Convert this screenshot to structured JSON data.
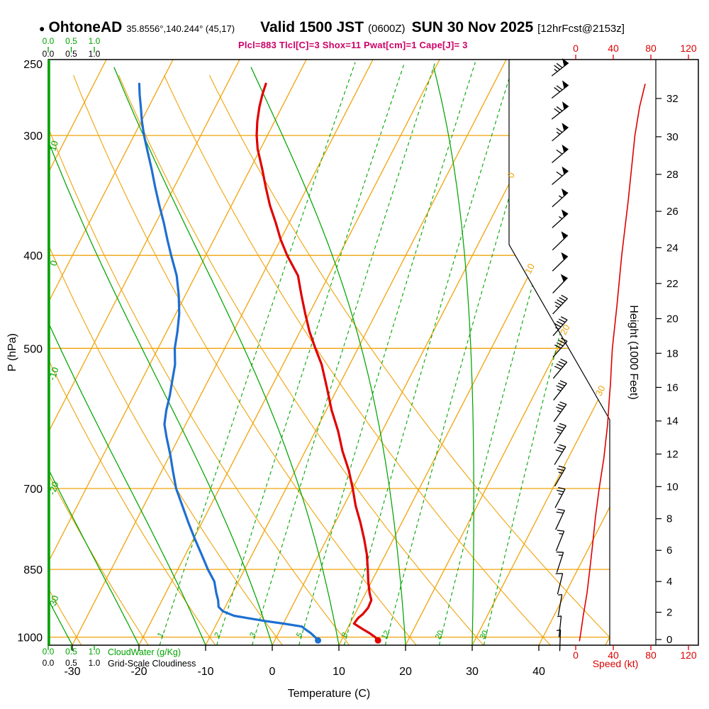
{
  "header": {
    "bullet": "●",
    "station": "OhtoneAD",
    "coords": "35.8556°,140.244° (45,17)",
    "valid": "Valid 1500 JST",
    "utc": "(0600Z)",
    "date": "SUN 30 Nov 2025",
    "fcst": "[12hrFcst@2153z]"
  },
  "params_line": "Plcl=883 Tlcl[C]=3 Shox=11 Pwat[cm]=1 Cape[J]= 3",
  "colors": {
    "grid_orange": "#f0a30a",
    "line_green": "#00a400",
    "dewpoint_blue": "#1e6fd2",
    "temperature_red": "#e00000",
    "wind_red": "#dd0000",
    "param_magenta": "#cc0066",
    "barb_black": "#000000"
  },
  "chart_data": {
    "type": "skewt_log_p_sounding",
    "pressure_axis": {
      "label": "P (hPa)",
      "ticks": [
        250,
        300,
        400,
        500,
        700,
        850,
        1000
      ],
      "range": [
        250,
        1020
      ]
    },
    "temperature_axis": {
      "label": "Temperature (C)",
      "ticks": [
        -30,
        -20,
        -10,
        0,
        10,
        20,
        30,
        40
      ]
    },
    "height_axis": {
      "label": "Height (1000 Feet)",
      "ticks": [
        0,
        2,
        4,
        6,
        8,
        10,
        12,
        14,
        16,
        18,
        20,
        22,
        24,
        26,
        28,
        30,
        32
      ]
    },
    "speed_axis": {
      "label": "Speed (kt)",
      "ticks": [
        0,
        40,
        80,
        120
      ]
    },
    "cloud_axes": {
      "ticks": [
        "0.0",
        "0.5",
        "1.0"
      ],
      "cloudwater_label": "CloudWater (g/Kg)",
      "cloudiness_label": "Grid-Scale Cloudiness"
    },
    "isotherm_labels": [
      0,
      10,
      20,
      30
    ],
    "adiabat_labels": [
      10,
      0,
      -10,
      -20,
      -30
    ],
    "mixing_ratio_labels": [
      1,
      2,
      3,
      5,
      8,
      12,
      20,
      30
    ],
    "temperature_profile": [
      [
        1008,
        15.5
      ],
      [
        1000,
        14.8
      ],
      [
        990,
        13.6
      ],
      [
        980,
        12.2
      ],
      [
        968,
        10.6
      ],
      [
        955,
        10.8
      ],
      [
        946,
        11.2
      ],
      [
        932,
        11.5
      ],
      [
        915,
        11.4
      ],
      [
        900,
        10.6
      ],
      [
        875,
        9.5
      ],
      [
        850,
        8.5
      ],
      [
        820,
        7.2
      ],
      [
        790,
        5.6
      ],
      [
        760,
        3.8
      ],
      [
        730,
        1.8
      ],
      [
        700,
        0
      ],
      [
        670,
        -2
      ],
      [
        640,
        -4.4
      ],
      [
        610,
        -6.6
      ],
      [
        580,
        -9.2
      ],
      [
        550,
        -11.6
      ],
      [
        520,
        -14.2
      ],
      [
        500,
        -16.4
      ],
      [
        480,
        -18.6
      ],
      [
        460,
        -20.6
      ],
      [
        440,
        -22.6
      ],
      [
        420,
        -24.6
      ],
      [
        400,
        -27.8
      ],
      [
        385,
        -30
      ],
      [
        370,
        -32
      ],
      [
        355,
        -34.2
      ],
      [
        340,
        -36.2
      ],
      [
        325,
        -38.2
      ],
      [
        310,
        -40.4
      ],
      [
        300,
        -41.6
      ],
      [
        290,
        -42.6
      ],
      [
        280,
        -43.4
      ],
      [
        272,
        -43.9
      ],
      [
        265,
        -44.2
      ]
    ],
    "dewpoint_profile": [
      [
        1008,
        6.5
      ],
      [
        1000,
        5.8
      ],
      [
        990,
        4.8
      ],
      [
        982,
        3.8
      ],
      [
        975,
        3
      ],
      [
        968,
        0
      ],
      [
        962,
        -3
      ],
      [
        956,
        -5.5
      ],
      [
        950,
        -8
      ],
      [
        940,
        -10
      ],
      [
        930,
        -11
      ],
      [
        915,
        -11.6
      ],
      [
        900,
        -12.4
      ],
      [
        875,
        -13.6
      ],
      [
        850,
        -15.5
      ],
      [
        820,
        -17.6
      ],
      [
        790,
        -19.8
      ],
      [
        760,
        -22
      ],
      [
        730,
        -24.2
      ],
      [
        700,
        -26.5
      ],
      [
        670,
        -28.4
      ],
      [
        645,
        -30
      ],
      [
        620,
        -31.8
      ],
      [
        600,
        -33.2
      ],
      [
        580,
        -34
      ],
      [
        560,
        -34.6
      ],
      [
        540,
        -35.4
      ],
      [
        520,
        -36.2
      ],
      [
        500,
        -37.5
      ],
      [
        480,
        -38.4
      ],
      [
        460,
        -39.5
      ],
      [
        440,
        -41
      ],
      [
        420,
        -42.8
      ],
      [
        400,
        -45.2
      ],
      [
        385,
        -47
      ],
      [
        370,
        -48.8
      ],
      [
        355,
        -50.8
      ],
      [
        340,
        -52.8
      ],
      [
        325,
        -54.8
      ],
      [
        310,
        -57
      ],
      [
        300,
        -58.5
      ],
      [
        290,
        -59.9
      ],
      [
        280,
        -61.2
      ],
      [
        272,
        -62.3
      ],
      [
        265,
        -63.2
      ]
    ],
    "wind_speed_profile": [
      [
        1010,
        4
      ],
      [
        980,
        6
      ],
      [
        950,
        8
      ],
      [
        925,
        10
      ],
      [
        900,
        12
      ],
      [
        850,
        15
      ],
      [
        800,
        18
      ],
      [
        750,
        21
      ],
      [
        700,
        25
      ],
      [
        650,
        30
      ],
      [
        600,
        34
      ],
      [
        560,
        36
      ],
      [
        545,
        37
      ],
      [
        520,
        38
      ],
      [
        500,
        39
      ],
      [
        450,
        44
      ],
      [
        400,
        49
      ],
      [
        350,
        56
      ],
      [
        300,
        63
      ],
      [
        280,
        68
      ],
      [
        265,
        74
      ]
    ],
    "wind_barbs": [
      [
        256,
        232,
        75
      ],
      [
        270,
        232,
        72
      ],
      [
        284,
        232,
        68
      ],
      [
        299,
        230,
        65
      ],
      [
        315,
        230,
        62
      ],
      [
        332,
        230,
        60
      ],
      [
        350,
        228,
        57
      ],
      [
        368,
        228,
        55
      ],
      [
        388,
        226,
        52
      ],
      [
        408,
        226,
        50
      ],
      [
        430,
        224,
        48
      ],
      [
        452,
        224,
        45
      ],
      [
        476,
        222,
        43
      ],
      [
        501,
        222,
        40
      ],
      [
        527,
        220,
        38
      ],
      [
        555,
        218,
        37
      ],
      [
        584,
        216,
        35
      ],
      [
        615,
        214,
        33
      ],
      [
        647,
        212,
        30
      ],
      [
        681,
        210,
        26
      ],
      [
        717,
        208,
        23
      ],
      [
        755,
        205,
        20
      ],
      [
        794,
        202,
        17
      ],
      [
        836,
        198,
        13
      ],
      [
        880,
        194,
        10
      ],
      [
        926,
        190,
        7
      ],
      [
        975,
        186,
        5
      ],
      [
        1008,
        182,
        4
      ]
    ],
    "cloud_water_profile": [
      [
        1019,
        0
      ],
      [
        250,
        0
      ]
    ],
    "grid": {
      "isotherm_step_c": 10,
      "dry_adiabat_step_c": 10,
      "moist_adiabat_values": [
        -40,
        -30,
        -20,
        -10,
        0,
        10,
        20,
        30
      ]
    }
  }
}
